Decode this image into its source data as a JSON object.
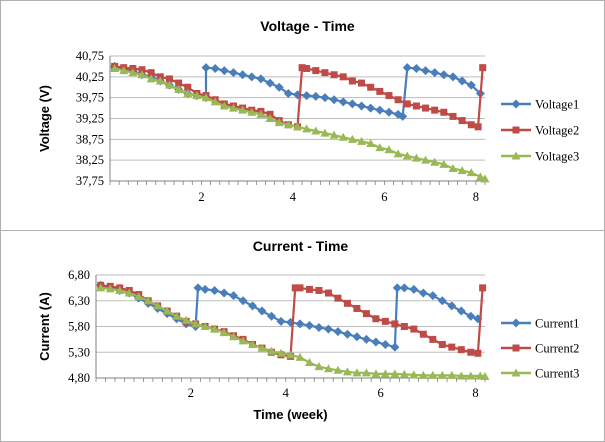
{
  "chart_data": [
    {
      "type": "line",
      "title": "Voltage - Time",
      "xlabel": "",
      "ylabel": "Voltage (V)",
      "xlim": [
        0,
        8.2
      ],
      "ylim": [
        37.75,
        40.75
      ],
      "x_ticks": [
        2,
        4,
        6,
        8
      ],
      "x_tick_labels": [
        "2",
        "4",
        "6",
        "8"
      ],
      "y_ticks": [
        37.75,
        38.25,
        38.75,
        39.25,
        39.75,
        40.25,
        40.75
      ],
      "y_tick_labels": [
        "37,75",
        "38,25",
        "38,75",
        "39,25",
        "39,75",
        "40,25",
        "40,75"
      ],
      "grid": "horizontal",
      "legend": "right",
      "series": [
        {
          "name": "Voltage1",
          "color": "#4a7ebb",
          "marker": "diamond",
          "x": [
            0.1,
            0.3,
            0.5,
            0.7,
            0.9,
            1.1,
            1.3,
            1.5,
            1.7,
            1.9,
            2.1,
            2.1,
            2.3,
            2.5,
            2.7,
            2.9,
            3.1,
            3.3,
            3.5,
            3.7,
            3.9,
            4.1,
            4.3,
            4.5,
            4.7,
            4.9,
            5.1,
            5.3,
            5.5,
            5.7,
            5.9,
            6.1,
            6.3,
            6.4,
            6.5,
            6.7,
            6.9,
            7.1,
            7.3,
            7.5,
            7.7,
            7.9,
            8.1
          ],
          "y": [
            40.5,
            40.45,
            40.4,
            40.3,
            40.25,
            40.15,
            40.05,
            39.95,
            39.85,
            39.8,
            39.75,
            40.47,
            40.45,
            40.4,
            40.35,
            40.3,
            40.25,
            40.2,
            40.1,
            40.0,
            39.85,
            39.82,
            39.8,
            39.78,
            39.75,
            39.7,
            39.65,
            39.6,
            39.55,
            39.5,
            39.45,
            39.4,
            39.35,
            39.3,
            40.47,
            40.45,
            40.4,
            40.35,
            40.3,
            40.25,
            40.15,
            40.05,
            39.85
          ]
        },
        {
          "name": "Voltage2",
          "color": "#be4b48",
          "marker": "square",
          "x": [
            0.1,
            0.3,
            0.5,
            0.7,
            0.9,
            1.1,
            1.3,
            1.5,
            1.7,
            1.9,
            2.1,
            2.3,
            2.5,
            2.7,
            2.9,
            3.1,
            3.3,
            3.5,
            3.7,
            3.9,
            4.1,
            4.2,
            4.3,
            4.5,
            4.7,
            4.9,
            5.1,
            5.3,
            5.5,
            5.7,
            5.9,
            6.1,
            6.3,
            6.5,
            6.7,
            6.9,
            7.1,
            7.3,
            7.5,
            7.7,
            7.9,
            8.05,
            8.15
          ],
          "y": [
            40.5,
            40.47,
            40.45,
            40.42,
            40.35,
            40.25,
            40.2,
            40.1,
            40.0,
            39.85,
            39.8,
            39.7,
            39.6,
            39.55,
            39.5,
            39.45,
            39.42,
            39.35,
            39.2,
            39.1,
            39.05,
            40.47,
            40.45,
            40.4,
            40.35,
            40.3,
            40.25,
            40.15,
            40.1,
            40.0,
            39.9,
            39.8,
            39.7,
            39.6,
            39.55,
            39.5,
            39.45,
            39.4,
            39.3,
            39.2,
            39.1,
            39.05,
            40.47
          ]
        },
        {
          "name": "Voltage3",
          "color": "#98b954",
          "marker": "triangle",
          "x": [
            0.1,
            0.3,
            0.5,
            0.7,
            0.9,
            1.1,
            1.3,
            1.5,
            1.7,
            1.9,
            2.1,
            2.3,
            2.5,
            2.7,
            2.9,
            3.1,
            3.3,
            3.5,
            3.7,
            3.9,
            4.1,
            4.3,
            4.5,
            4.7,
            4.9,
            5.1,
            5.3,
            5.5,
            5.7,
            5.9,
            6.1,
            6.3,
            6.5,
            6.7,
            6.9,
            7.1,
            7.3,
            7.5,
            7.7,
            7.9,
            8.1,
            8.2
          ],
          "y": [
            40.45,
            40.4,
            40.35,
            40.3,
            40.2,
            40.15,
            40.05,
            39.95,
            39.85,
            39.8,
            39.75,
            39.65,
            39.55,
            39.5,
            39.45,
            39.4,
            39.35,
            39.25,
            39.15,
            39.1,
            39.05,
            39.0,
            38.95,
            38.9,
            38.85,
            38.8,
            38.75,
            38.7,
            38.65,
            38.55,
            38.5,
            38.4,
            38.35,
            38.3,
            38.25,
            38.2,
            38.15,
            38.05,
            38.0,
            37.95,
            37.85,
            37.8
          ]
        }
      ]
    },
    {
      "type": "line",
      "title": "Current - Time",
      "xlabel": "Time (week)",
      "ylabel": "Current (A)",
      "xlim": [
        0,
        8.2
      ],
      "ylim": [
        4.8,
        6.8
      ],
      "x_ticks": [
        2,
        4,
        6,
        8
      ],
      "x_tick_labels": [
        "2",
        "4",
        "6",
        "8"
      ],
      "y_ticks": [
        4.8,
        5.3,
        5.8,
        6.3,
        6.8
      ],
      "y_tick_labels": [
        "4,80",
        "5,30",
        "5,80",
        "6,30",
        "6,80"
      ],
      "grid": "horizontal",
      "legend": "right",
      "series": [
        {
          "name": "Current1",
          "color": "#4a7ebb",
          "marker": "diamond",
          "x": [
            0.1,
            0.3,
            0.5,
            0.7,
            0.9,
            1.1,
            1.3,
            1.5,
            1.7,
            1.9,
            2.1,
            2.15,
            2.3,
            2.5,
            2.7,
            2.9,
            3.1,
            3.3,
            3.5,
            3.7,
            3.9,
            4.1,
            4.3,
            4.5,
            4.7,
            4.9,
            5.1,
            5.3,
            5.5,
            5.7,
            5.9,
            6.1,
            6.3,
            6.35,
            6.5,
            6.7,
            6.9,
            7.1,
            7.3,
            7.5,
            7.7,
            7.9,
            8.05
          ],
          "y": [
            6.6,
            6.55,
            6.5,
            6.45,
            6.35,
            6.25,
            6.15,
            6.05,
            5.95,
            5.85,
            5.8,
            6.55,
            6.52,
            6.5,
            6.45,
            6.4,
            6.3,
            6.2,
            6.1,
            6.0,
            5.9,
            5.88,
            5.85,
            5.82,
            5.78,
            5.75,
            5.7,
            5.65,
            5.6,
            5.55,
            5.5,
            5.45,
            5.4,
            6.55,
            6.55,
            6.52,
            6.45,
            6.4,
            6.3,
            6.2,
            6.1,
            6.0,
            5.95
          ]
        },
        {
          "name": "Current2",
          "color": "#be4b48",
          "marker": "square",
          "x": [
            0.1,
            0.3,
            0.5,
            0.7,
            0.9,
            1.1,
            1.3,
            1.5,
            1.7,
            1.9,
            2.1,
            2.3,
            2.5,
            2.7,
            2.9,
            3.1,
            3.3,
            3.5,
            3.7,
            3.9,
            4.1,
            4.2,
            4.3,
            4.5,
            4.7,
            4.9,
            5.1,
            5.3,
            5.5,
            5.7,
            5.9,
            6.1,
            6.3,
            6.5,
            6.7,
            6.9,
            7.1,
            7.3,
            7.5,
            7.7,
            7.9,
            8.05,
            8.15
          ],
          "y": [
            6.6,
            6.58,
            6.55,
            6.5,
            6.42,
            6.3,
            6.2,
            6.1,
            6.0,
            5.9,
            5.85,
            5.8,
            5.75,
            5.7,
            5.62,
            5.55,
            5.45,
            5.38,
            5.3,
            5.25,
            5.22,
            6.55,
            6.55,
            6.52,
            6.5,
            6.45,
            6.35,
            6.25,
            6.15,
            6.05,
            5.95,
            5.9,
            5.85,
            5.8,
            5.75,
            5.65,
            5.55,
            5.45,
            5.4,
            5.35,
            5.3,
            5.28,
            6.55
          ]
        },
        {
          "name": "Current3",
          "color": "#98b954",
          "marker": "triangle",
          "x": [
            0.1,
            0.3,
            0.5,
            0.7,
            0.9,
            1.1,
            1.3,
            1.5,
            1.7,
            1.9,
            2.1,
            2.3,
            2.5,
            2.7,
            2.9,
            3.1,
            3.3,
            3.5,
            3.7,
            3.9,
            4.1,
            4.3,
            4.5,
            4.7,
            4.9,
            5.1,
            5.3,
            5.5,
            5.7,
            5.9,
            6.1,
            6.3,
            6.5,
            6.7,
            6.9,
            7.1,
            7.3,
            7.5,
            7.7,
            7.9,
            8.1,
            8.2
          ],
          "y": [
            6.55,
            6.53,
            6.5,
            6.45,
            6.38,
            6.3,
            6.2,
            6.1,
            6.0,
            5.92,
            5.85,
            5.8,
            5.75,
            5.68,
            5.6,
            5.52,
            5.45,
            5.38,
            5.32,
            5.28,
            5.25,
            5.2,
            5.1,
            5.02,
            4.98,
            4.95,
            4.92,
            4.9,
            4.9,
            4.88,
            4.88,
            4.88,
            4.87,
            4.86,
            4.85,
            4.85,
            4.85,
            4.85,
            4.84,
            4.84,
            4.84,
            4.83
          ]
        }
      ]
    }
  ]
}
